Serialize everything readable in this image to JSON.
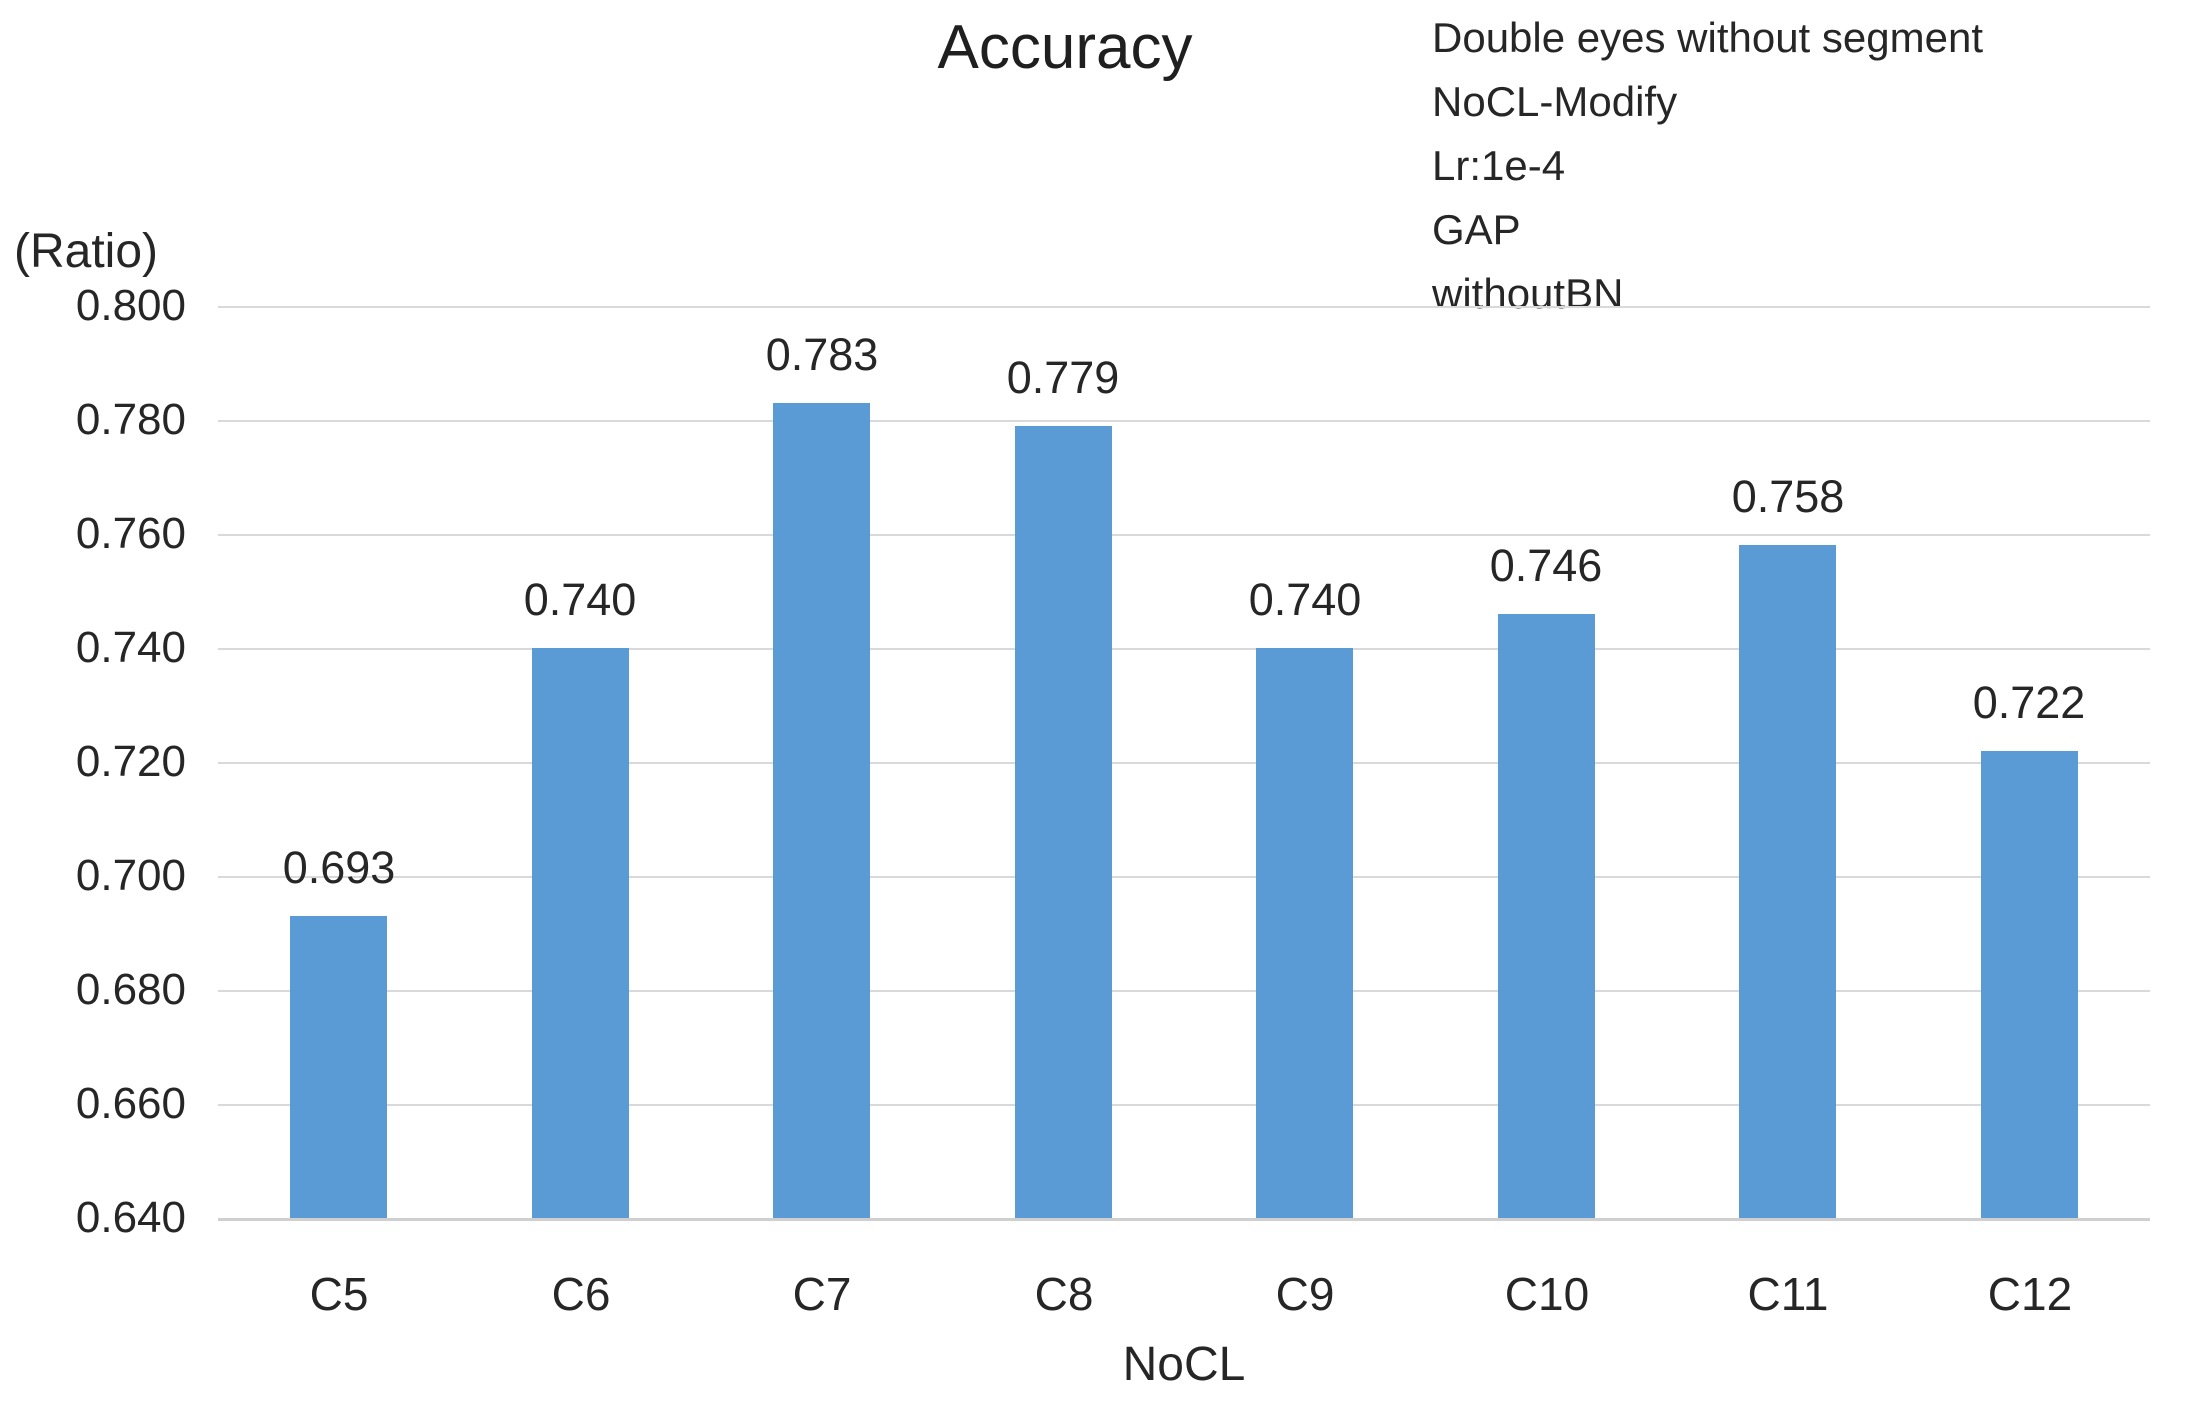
{
  "chart_data": {
    "type": "bar",
    "title": "Accuracy",
    "annotation_lines": [
      "Double eyes without segment",
      "NoCL-Modify",
      "Lr:1e-4",
      "GAP",
      "withoutBN"
    ],
    "ylabel": "(Ratio)",
    "xlabel": "NoCL",
    "categories": [
      "C5",
      "C6",
      "C7",
      "C8",
      "C9",
      "C10",
      "C11",
      "C12"
    ],
    "values": [
      0.693,
      0.74,
      0.783,
      0.779,
      0.74,
      0.746,
      0.758,
      0.722
    ],
    "data_labels": [
      "0.693",
      "0.740",
      "0.783",
      "0.779",
      "0.740",
      "0.746",
      "0.758",
      "0.722"
    ],
    "ylim": [
      0.64,
      0.8
    ],
    "ytick_step": 0.02,
    "ytick_labels": [
      "0.800",
      "0.780",
      "0.760",
      "0.740",
      "0.720",
      "0.700",
      "0.680",
      "0.660",
      "0.640"
    ],
    "grid": "horizontal",
    "legend": "none",
    "bar_color": "#5b9bd5",
    "gridline_color": "#d9d9d9",
    "text_color": "#262626"
  }
}
